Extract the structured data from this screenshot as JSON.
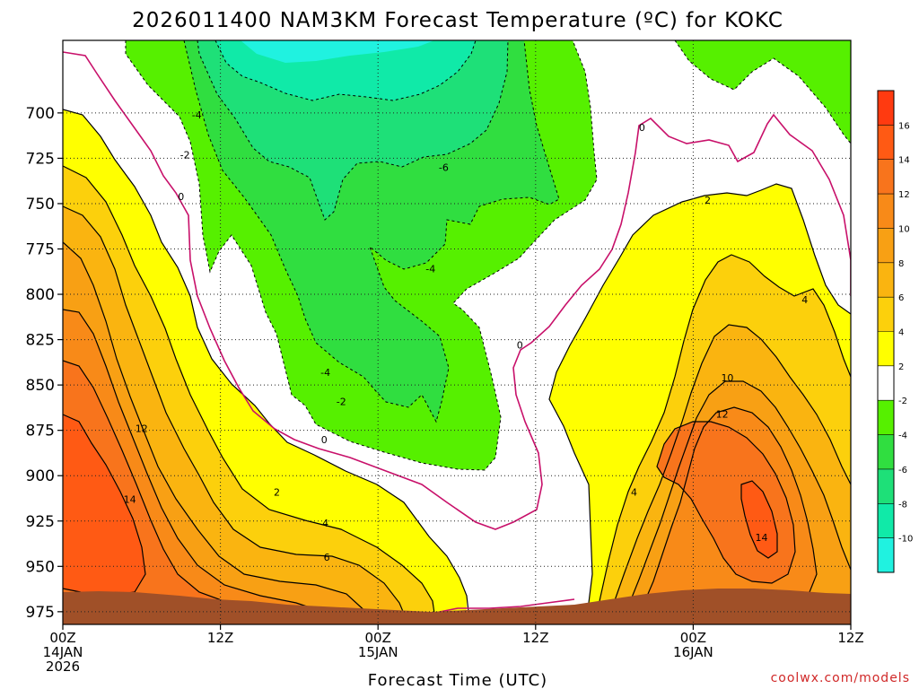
{
  "chart_data": {
    "type": "contour",
    "title": "2026011400 NAM3KM Forecast Temperature (ºC) for KOKC",
    "xlabel": "Forecast Time (UTC)",
    "ylabel": "",
    "x_range_hours": [
      0,
      60
    ],
    "y_range_hpa": [
      660,
      982
    ],
    "y_scale": "pressure (inverted, hPa)",
    "y_ticks": [
      700,
      725,
      750,
      775,
      800,
      825,
      850,
      875,
      900,
      925,
      950,
      975
    ],
    "x_ticks": [
      {
        "hour": 0,
        "lines": [
          "00Z",
          "14JAN",
          "2026"
        ]
      },
      {
        "hour": 12,
        "lines": [
          "12Z"
        ]
      },
      {
        "hour": 24,
        "lines": [
          "00Z",
          "15JAN"
        ]
      },
      {
        "hour": 36,
        "lines": [
          "12Z"
        ]
      },
      {
        "hour": 48,
        "lines": [
          "00Z",
          "16JAN"
        ]
      },
      {
        "hour": 60,
        "lines": [
          "12Z"
        ]
      }
    ],
    "grid": true,
    "colorbar": {
      "position": "right",
      "tick_labels": [
        "16",
        "14",
        "12",
        "10",
        "8",
        "6",
        "4",
        "2",
        "-2",
        "-4",
        "-6",
        "-8",
        "-10"
      ],
      "bands": [
        {
          "from": 16,
          "to": 18,
          "color": "#ff3a10"
        },
        {
          "from": 14,
          "to": 16,
          "color": "#ff5a14"
        },
        {
          "from": 12,
          "to": 14,
          "color": "#f8741c"
        },
        {
          "from": 10,
          "to": 12,
          "color": "#f88a18"
        },
        {
          "from": 8,
          "to": 10,
          "color": "#f8a014"
        },
        {
          "from": 6,
          "to": 8,
          "color": "#fab410"
        },
        {
          "from": 4,
          "to": 6,
          "color": "#fcd00c"
        },
        {
          "from": 2,
          "to": 4,
          "color": "#ffff00"
        },
        {
          "from": -2,
          "to": 2,
          "color": "#ffffff"
        },
        {
          "from": -4,
          "to": -2,
          "color": "#56f000"
        },
        {
          "from": -6,
          "to": -4,
          "color": "#30de40"
        },
        {
          "from": -8,
          "to": -6,
          "color": "#1ee078"
        },
        {
          "from": -10,
          "to": -8,
          "color": "#10eaa8"
        },
        {
          "from": -12,
          "to": -10,
          "color": "#20f2e0"
        }
      ]
    },
    "contour_labels": [
      {
        "hour": 10.2,
        "hpa": 701,
        "text": "-4"
      },
      {
        "hour": 9.3,
        "hpa": 723,
        "text": "-2"
      },
      {
        "hour": 9.0,
        "hpa": 746,
        "text": "0"
      },
      {
        "hour": 29.0,
        "hpa": 730,
        "text": "-6"
      },
      {
        "hour": 28.0,
        "hpa": 786,
        "text": "-4"
      },
      {
        "hour": 44.1,
        "hpa": 708,
        "text": "0"
      },
      {
        "hour": 49.1,
        "hpa": 748,
        "text": "2"
      },
      {
        "hour": 56.5,
        "hpa": 803,
        "text": "4"
      },
      {
        "hour": 20.0,
        "hpa": 843,
        "text": "-4"
      },
      {
        "hour": 21.2,
        "hpa": 859,
        "text": "-2"
      },
      {
        "hour": 19.9,
        "hpa": 880,
        "text": "0"
      },
      {
        "hour": 34.8,
        "hpa": 828,
        "text": "0"
      },
      {
        "hour": 50.6,
        "hpa": 846,
        "text": "10"
      },
      {
        "hour": 50.2,
        "hpa": 866,
        "text": "12"
      },
      {
        "hour": 6.0,
        "hpa": 874,
        "text": "12"
      },
      {
        "hour": 5.1,
        "hpa": 913,
        "text": "14"
      },
      {
        "hour": 16.3,
        "hpa": 909,
        "text": "2"
      },
      {
        "hour": 20.0,
        "hpa": 926,
        "text": "4"
      },
      {
        "hour": 20.1,
        "hpa": 945,
        "text": "6"
      },
      {
        "hour": 43.5,
        "hpa": 909,
        "text": "4"
      },
      {
        "hour": 53.2,
        "hpa": 934,
        "text": "14"
      }
    ],
    "colors": {
      "terrain": "#a05028",
      "zero_line": "#c8106a",
      "contour_line": "#000000"
    }
  },
  "credit": "coolwx.com/models"
}
